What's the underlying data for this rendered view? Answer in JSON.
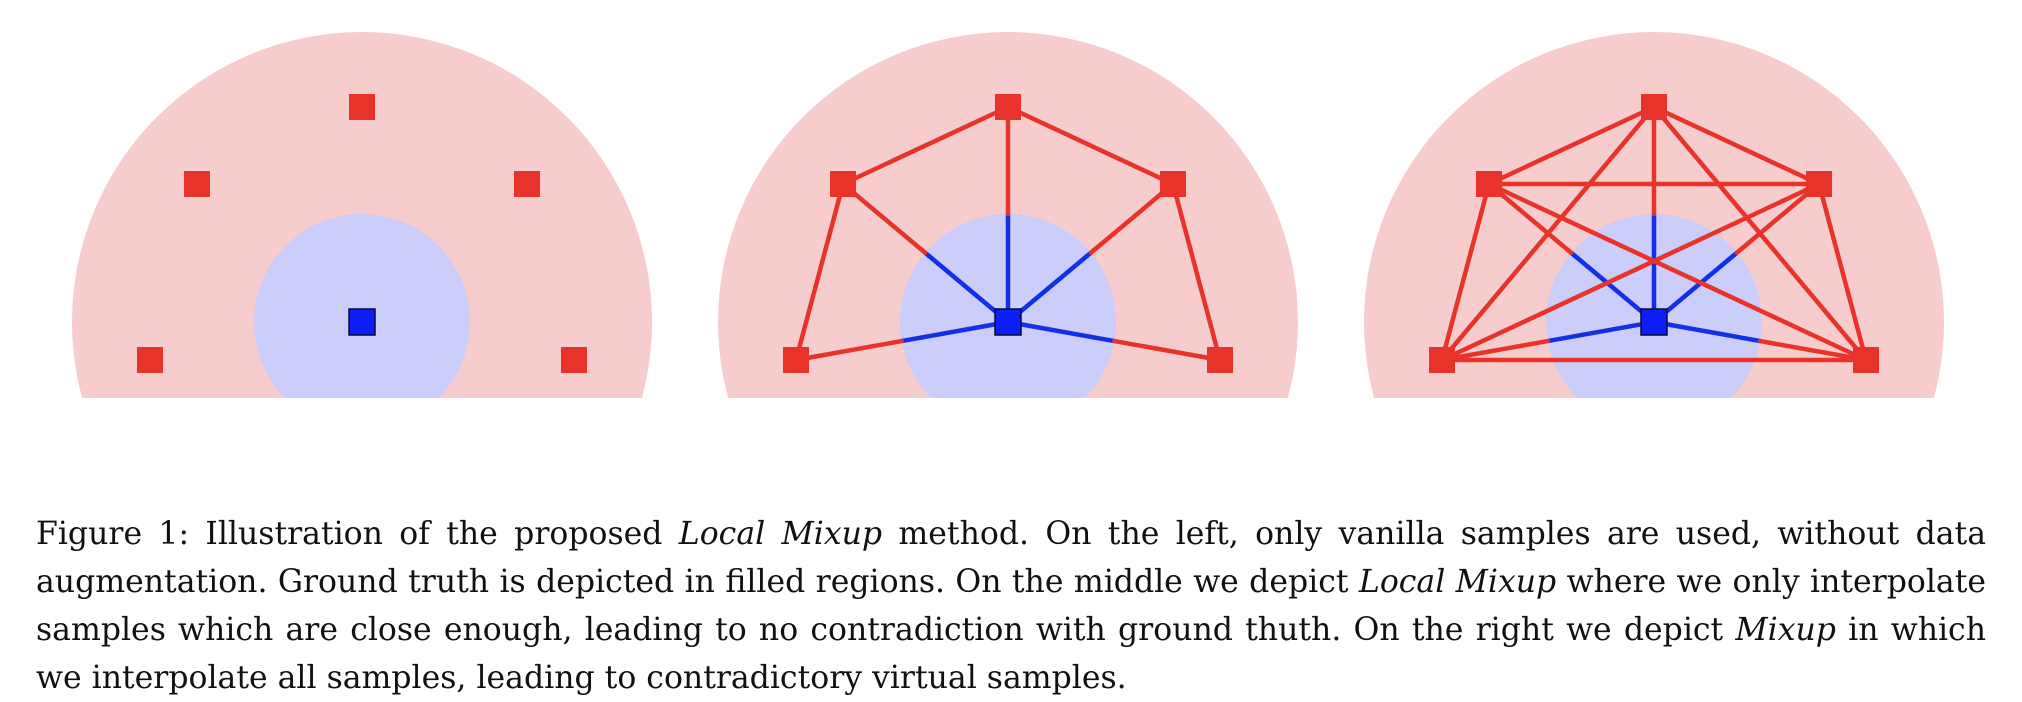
{
  "colors": {
    "outer_region": "#f7cccd",
    "inner_region": "#cbcdfa",
    "red_sample": "#e8332b",
    "blue_sample": "#0a1ef5",
    "red_edge": "#e8332b",
    "blue_edge": "#1230e6"
  },
  "panels": [
    {
      "name": "vanilla",
      "connect": "none"
    },
    {
      "name": "local-mixup",
      "connect": "center"
    },
    {
      "name": "mixup",
      "connect": "all"
    }
  ],
  "caption": {
    "parts": [
      {
        "text": "Figure 1: Illustration of the proposed ",
        "italic": false
      },
      {
        "text": "Local Mixup",
        "italic": true
      },
      {
        "text": " method. On the left, only vanilla samples are used, without data augmentation. Ground truth is depicted in filled regions. On the middle we depict ",
        "italic": false
      },
      {
        "text": "Local Mixup",
        "italic": true
      },
      {
        "text": " where we only interpolate samples which are close enough, leading to no contradiction with ground thuth. On the right we depict ",
        "italic": false
      },
      {
        "text": "Mixup",
        "italic": true
      },
      {
        "text": " in which we interpolate all samples, leading to contradictory virtual samples.",
        "italic": false
      }
    ]
  }
}
